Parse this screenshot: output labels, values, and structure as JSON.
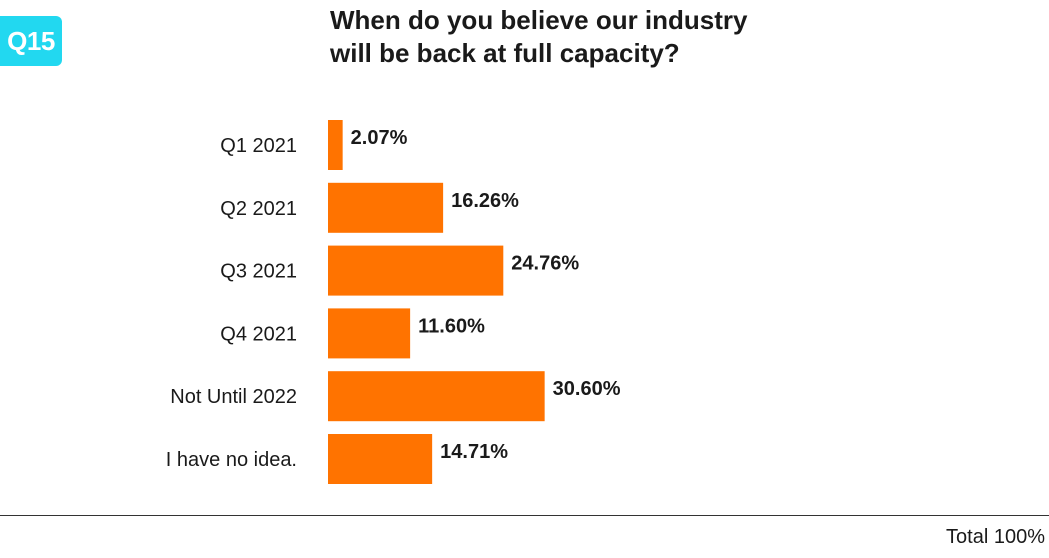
{
  "badge": {
    "label": "Q15",
    "color": "#22d8f0"
  },
  "title_lines": [
    "When do you believe our industry",
    "will be back at full capacity?"
  ],
  "footer": {
    "total_label": "Total 100%"
  },
  "chart_data": {
    "type": "bar",
    "orientation": "horizontal",
    "title": "When do you believe our industry will be back at full capacity?",
    "categories": [
      "Q1 2021",
      "Q2 2021",
      "Q3 2021",
      "Q4 2021",
      "Not Until 2022",
      "I have no idea."
    ],
    "values": [
      2.07,
      16.26,
      24.76,
      11.6,
      30.6,
      14.71
    ],
    "value_labels": [
      "2.07%",
      "16.26%",
      "24.76%",
      "11.60%",
      "30.60%",
      "14.71%"
    ],
    "unit": "%",
    "xlim": [
      0,
      100
    ],
    "bar_color": "#ff7300",
    "grid": false,
    "legend": "none"
  }
}
